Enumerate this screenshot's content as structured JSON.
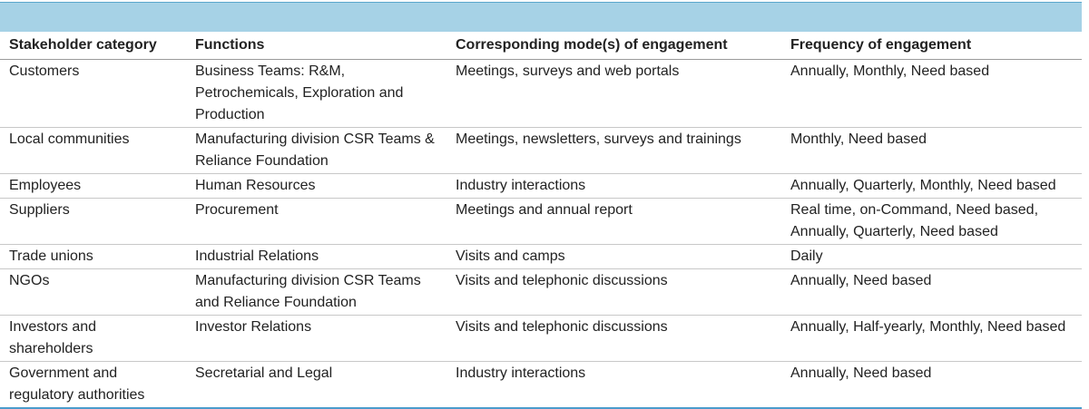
{
  "table": {
    "header": [
      "Stakeholder category",
      "Functions",
      "Corresponding mode(s) of engagement",
      "Frequency of engagement"
    ],
    "rows": [
      [
        "Customers",
        "Business Teams: R&M, Petrochemicals, Exploration and Production",
        "Meetings, surveys and web portals",
        "Annually, Monthly, Need based"
      ],
      [
        "Local communities",
        "Manufacturing division CSR Teams & Reliance Foundation",
        "Meetings, newsletters, surveys and trainings",
        "Monthly, Need based"
      ],
      [
        "Employees",
        "Human Resources",
        "Industry interactions",
        "Annually, Quarterly, Monthly, Need based"
      ],
      [
        "Suppliers",
        "Procurement",
        "Meetings and annual report",
        "Real time, on-Command, Need based, Annually, Quarterly, Need based"
      ],
      [
        "Trade unions",
        "Industrial Relations",
        "Visits and camps",
        "Daily"
      ],
      [
        "NGOs",
        "Manufacturing division CSR Teams and Reliance Foundation",
        "Visits and telephonic discussions",
        "Annually, Need based"
      ],
      [
        "Investors and shareholders",
        "Investor Relations",
        "Visits and telephonic discussions",
        "Annually, Half-yearly, Monthly, Need based"
      ],
      [
        "Government and regulatory authorities",
        "Secretarial and Legal",
        "Industry interactions",
        "Annually, Need based"
      ]
    ]
  }
}
